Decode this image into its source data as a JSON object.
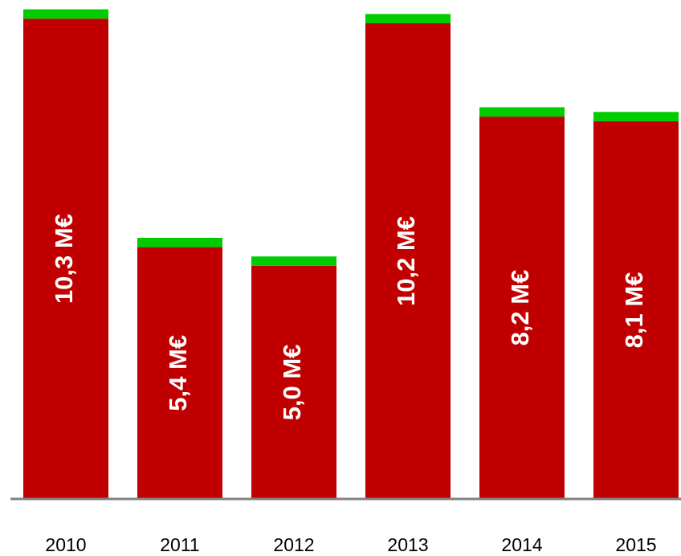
{
  "chart_data": {
    "type": "stacked-bar",
    "categories": [
      "2010",
      "2011",
      "2012",
      "2013",
      "2014",
      "2015"
    ],
    "series": [
      {
        "color": "#c00000",
        "values": [
          10.3,
          5.4,
          5.0,
          10.2,
          8.2,
          8.1
        ],
        "value_labels": [
          "10,3 M€",
          "5,4 M€",
          "5,0 M€",
          "10,2 M€",
          "8,2 M€",
          "8,1 M€"
        ]
      },
      {
        "color": "#00cc00",
        "values": [
          0.2,
          0.2,
          0.2,
          0.2,
          0.2,
          0.2
        ]
      }
    ],
    "ylim": [
      0,
      10.7
    ],
    "axis_color": "#808080"
  }
}
